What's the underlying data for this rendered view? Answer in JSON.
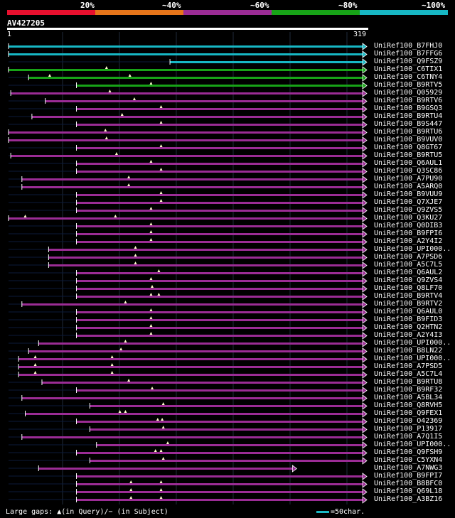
{
  "legend": {
    "colors": [
      "#e8102e",
      "#e6751a",
      "#9b2c95",
      "#17a317",
      "#17b7c4"
    ],
    "labels": [
      "20%",
      "~40%",
      "~60%",
      "~80%",
      "~100%"
    ]
  },
  "query": {
    "title": "AV427205",
    "start": "1",
    "end": "319",
    "length": 319
  },
  "hits": [
    {
      "name": "UniRef100_B7FHJ0",
      "color": "#17b7c4",
      "start": 1,
      "end": 319,
      "arrow": true,
      "ins": []
    },
    {
      "name": "UniRef100_B7FFG6",
      "color": "#17b7c4",
      "start": 1,
      "end": 319,
      "arrow": true,
      "ins": []
    },
    {
      "name": "UniRef100_Q9FSZ9",
      "color": "#17b7c4",
      "start": 146,
      "end": 319,
      "arrow": true,
      "ins": []
    },
    {
      "name": "UniRef100_C6TIX1",
      "color": "#17a317",
      "start": 1,
      "end": 319,
      "arrow": true,
      "ins": [
        89
      ]
    },
    {
      "name": "UniRef100_C6TNY4",
      "color": "#17a317",
      "start": 19,
      "end": 319,
      "arrow": true,
      "ins": [
        38,
        110
      ]
    },
    {
      "name": "UniRef100_B9RTV5",
      "color": "#17a317",
      "start": 62,
      "end": 319,
      "arrow": true,
      "ins": [
        129
      ]
    },
    {
      "name": "UniRef100_Q05929",
      "color": "#9b2c95",
      "start": 3,
      "end": 319,
      "arrow": true,
      "ins": [
        92
      ]
    },
    {
      "name": "UniRef100_B9RTV6",
      "color": "#9b2c95",
      "start": 34,
      "end": 319,
      "arrow": true,
      "ins": [
        114
      ]
    },
    {
      "name": "UniRef100_B9GSQ3",
      "color": "#9b2c95",
      "start": 62,
      "end": 319,
      "arrow": true,
      "ins": [
        138
      ]
    },
    {
      "name": "UniRef100_B9RTU4",
      "color": "#9b2c95",
      "start": 22,
      "end": 319,
      "arrow": true,
      "ins": [
        103
      ]
    },
    {
      "name": "UniRef100_B9S447",
      "color": "#9b2c95",
      "start": 62,
      "end": 319,
      "arrow": true,
      "ins": [
        138
      ]
    },
    {
      "name": "UniRef100_B9RTU6",
      "color": "#9b2c95",
      "start": 1,
      "end": 319,
      "arrow": true,
      "ins": [
        88
      ]
    },
    {
      "name": "UniRef100_B9VUV0",
      "color": "#9b2c95",
      "start": 1,
      "end": 319,
      "arrow": true,
      "ins": [
        89
      ]
    },
    {
      "name": "UniRef100_Q8GT67",
      "color": "#9b2c95",
      "start": 62,
      "end": 319,
      "arrow": true,
      "ins": [
        138
      ]
    },
    {
      "name": "UniRef100_B9RTU5",
      "color": "#9b2c95",
      "start": 3,
      "end": 319,
      "arrow": true,
      "ins": [
        98
      ]
    },
    {
      "name": "UniRef100_Q6AUL1",
      "color": "#9b2c95",
      "start": 62,
      "end": 319,
      "arrow": true,
      "ins": [
        129
      ]
    },
    {
      "name": "UniRef100_Q3SC86",
      "color": "#9b2c95",
      "start": 62,
      "end": 319,
      "arrow": true,
      "ins": [
        138
      ]
    },
    {
      "name": "UniRef100_A7PU90",
      "color": "#9b2c95",
      "start": 13,
      "end": 319,
      "arrow": true,
      "ins": [
        109
      ]
    },
    {
      "name": "UniRef100_A5ARQ0",
      "color": "#9b2c95",
      "start": 13,
      "end": 319,
      "arrow": true,
      "ins": [
        109
      ]
    },
    {
      "name": "UniRef100_B9VUU9",
      "color": "#9b2c95",
      "start": 62,
      "end": 319,
      "arrow": true,
      "ins": [
        138
      ]
    },
    {
      "name": "UniRef100_Q7XJE7",
      "color": "#9b2c95",
      "start": 62,
      "end": 319,
      "arrow": true,
      "ins": [
        138
      ]
    },
    {
      "name": "UniRef100_Q9ZVS5",
      "color": "#9b2c95",
      "start": 62,
      "end": 319,
      "arrow": true,
      "ins": [
        129
      ]
    },
    {
      "name": "UniRef100_Q3KU27",
      "color": "#9b2c95",
      "start": 1,
      "end": 319,
      "arrow": true,
      "ins": [
        16,
        97
      ]
    },
    {
      "name": "UniRef100_Q0DIB3",
      "color": "#9b2c95",
      "start": 62,
      "end": 319,
      "arrow": true,
      "ins": [
        129
      ]
    },
    {
      "name": "UniRef100_B9FPI6",
      "color": "#9b2c95",
      "start": 62,
      "end": 319,
      "arrow": true,
      "ins": [
        129
      ]
    },
    {
      "name": "UniRef100_A2Y4I2",
      "color": "#9b2c95",
      "start": 62,
      "end": 319,
      "arrow": true,
      "ins": [
        129
      ]
    },
    {
      "name": "UniRef100_UPI000..",
      "color": "#9b2c95",
      "start": 37,
      "end": 319,
      "arrow": true,
      "ins": [
        115
      ]
    },
    {
      "name": "UniRef100_A7PSD6",
      "color": "#9b2c95",
      "start": 37,
      "end": 319,
      "arrow": true,
      "ins": [
        115
      ]
    },
    {
      "name": "UniRef100_A5C7L5",
      "color": "#9b2c95",
      "start": 37,
      "end": 319,
      "arrow": true,
      "ins": [
        115
      ]
    },
    {
      "name": "UniRef100_Q6AUL2",
      "color": "#9b2c95",
      "start": 62,
      "end": 319,
      "arrow": true,
      "ins": [
        136
      ]
    },
    {
      "name": "UniRef100_Q9ZVS4",
      "color": "#9b2c95",
      "start": 62,
      "end": 319,
      "arrow": true,
      "ins": [
        129
      ]
    },
    {
      "name": "UniRef100_Q8LF70",
      "color": "#9b2c95",
      "start": 62,
      "end": 319,
      "arrow": true,
      "ins": [
        130
      ]
    },
    {
      "name": "UniRef100_B9RTV4",
      "color": "#9b2c95",
      "start": 62,
      "end": 319,
      "arrow": true,
      "ins": [
        129,
        136
      ]
    },
    {
      "name": "UniRef100_B9RTV2",
      "color": "#9b2c95",
      "start": 13,
      "end": 319,
      "arrow": true,
      "ins": [
        106
      ]
    },
    {
      "name": "UniRef100_Q6AUL0",
      "color": "#9b2c95",
      "start": 62,
      "end": 319,
      "arrow": true,
      "ins": [
        129
      ]
    },
    {
      "name": "UniRef100_B9FID3",
      "color": "#9b2c95",
      "start": 62,
      "end": 319,
      "arrow": true,
      "ins": [
        129
      ]
    },
    {
      "name": "UniRef100_Q2HTN2",
      "color": "#9b2c95",
      "start": 62,
      "end": 319,
      "arrow": true,
      "ins": [
        129
      ]
    },
    {
      "name": "UniRef100_A2Y4I3",
      "color": "#9b2c95",
      "start": 62,
      "end": 319,
      "arrow": true,
      "ins": [
        129
      ]
    },
    {
      "name": "UniRef100_UPI000..",
      "color": "#9b2c95",
      "start": 28,
      "end": 319,
      "arrow": true,
      "ins": [
        106
      ]
    },
    {
      "name": "UniRef100_B8LN22",
      "color": "#9b2c95",
      "start": 19,
      "end": 319,
      "arrow": true,
      "ins": [
        102
      ]
    },
    {
      "name": "UniRef100_UPI000..",
      "color": "#9b2c95",
      "start": 10,
      "end": 319,
      "arrow": true,
      "ins": [
        25,
        94
      ]
    },
    {
      "name": "UniRef100_A7PSD5",
      "color": "#9b2c95",
      "start": 10,
      "end": 319,
      "arrow": true,
      "ins": [
        25,
        94
      ]
    },
    {
      "name": "UniRef100_A5C7L4",
      "color": "#9b2c95",
      "start": 10,
      "end": 319,
      "arrow": true,
      "ins": [
        25,
        94
      ]
    },
    {
      "name": "UniRef100_B9RTU8",
      "color": "#9b2c95",
      "start": 31,
      "end": 319,
      "arrow": true,
      "ins": [
        109
      ]
    },
    {
      "name": "UniRef100_B9RF32",
      "color": "#9b2c95",
      "start": 62,
      "end": 319,
      "arrow": true,
      "ins": [
        130
      ]
    },
    {
      "name": "UniRef100_A5BL34",
      "color": "#9b2c95",
      "start": 13,
      "end": 319,
      "arrow": true,
      "ins": []
    },
    {
      "name": "UniRef100_Q8RVH5",
      "color": "#9b2c95",
      "start": 74,
      "end": 319,
      "arrow": true,
      "ins": [
        140
      ]
    },
    {
      "name": "UniRef100_Q9FEX1",
      "color": "#9b2c95",
      "start": 16,
      "end": 319,
      "arrow": true,
      "ins": [
        101,
        106
      ]
    },
    {
      "name": "UniRef100_O42369",
      "color": "#9b2c95",
      "start": 62,
      "end": 319,
      "arrow": true,
      "ins": [
        135,
        139
      ]
    },
    {
      "name": "UniRef100_P13917",
      "color": "#9b2c95",
      "start": 74,
      "end": 319,
      "arrow": true,
      "ins": [
        140
      ]
    },
    {
      "name": "UniRef100_A7Q1I5",
      "color": "#9b2c95",
      "start": 13,
      "end": 319,
      "arrow": true,
      "ins": []
    },
    {
      "name": "UniRef100_UPI000..",
      "color": "#9b2c95",
      "start": 80,
      "end": 319,
      "arrow": true,
      "ins": [
        144
      ]
    },
    {
      "name": "UniRef100_Q9FSH9",
      "color": "#9b2c95",
      "start": 62,
      "end": 319,
      "arrow": true,
      "ins": [
        133,
        138
      ]
    },
    {
      "name": "UniRef100_C5YXN4",
      "color": "#9b2c95",
      "start": 74,
      "end": 319,
      "arrow": true,
      "ins": [
        140
      ]
    },
    {
      "name": "UniRef100_A7NWG3",
      "color": "#9b2c95",
      "start": 28,
      "end": 256,
      "arrow": true,
      "ins": []
    },
    {
      "name": "UniRef100_B9FPI7",
      "color": "#9b2c95",
      "start": 62,
      "end": 319,
      "arrow": true,
      "ins": []
    },
    {
      "name": "UniRef100_B8BFC0",
      "color": "#9b2c95",
      "start": 62,
      "end": 319,
      "arrow": true,
      "ins": [
        111,
        138
      ]
    },
    {
      "name": "UniRef100_Q69L18",
      "color": "#9b2c95",
      "start": 62,
      "end": 319,
      "arrow": true,
      "ins": [
        111,
        138
      ]
    },
    {
      "name": "UniRef100_A3BZ16",
      "color": "#9b2c95",
      "start": 62,
      "end": 319,
      "arrow": true,
      "ins": [
        111,
        138
      ]
    }
  ],
  "footer": {
    "large_gaps": "Large gaps: ▲(in Query)/− (in Subject)",
    "scale": "=50char."
  }
}
